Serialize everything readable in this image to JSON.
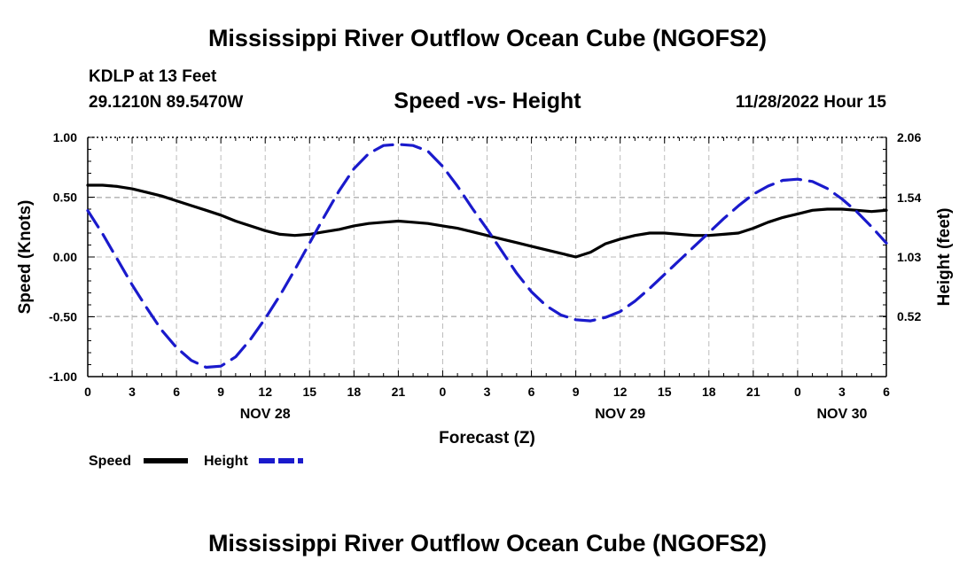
{
  "page": {
    "title": "Mississippi River Outflow Ocean Cube (NGOFS2)",
    "station_name": "KDLP at 13 Feet",
    "station_coords": "29.1210N  89.5470W",
    "plot_title": "Speed -vs- Height",
    "datetime": "11/28/2022 Hour 15",
    "footer_title": "Mississippi River Outflow Ocean Cube (NGOFS2)"
  },
  "colors": {
    "speed": "#000000",
    "height": "#1a1acc",
    "grid": "#bbbbbb"
  },
  "chart_data": {
    "type": "line",
    "xlabel": "Forecast (Z)",
    "ylabel": "Speed (Knots)",
    "y2label": "Height (feet)",
    "xlim": [
      0,
      54
    ],
    "ylim": [
      -1.0,
      1.0
    ],
    "y2lim": [
      0.0,
      2.06
    ],
    "x_tick_labels": [
      "0",
      "3",
      "6",
      "9",
      "12",
      "15",
      "18",
      "21",
      "0",
      "3",
      "6",
      "9",
      "12",
      "15",
      "18",
      "21",
      "0",
      "3",
      "6"
    ],
    "y_tick_labels": [
      "1.00",
      "0.50",
      "0.00",
      "-0.50",
      "-1.00"
    ],
    "y_tick_values": [
      1.0,
      0.5,
      0.0,
      -0.5,
      -1.0
    ],
    "y2_tick_labels": [
      "2.06",
      "1.54",
      "1.03",
      "0.52"
    ],
    "y2_tick_values": [
      2.06,
      1.54,
      1.03,
      0.52
    ],
    "date_labels": [
      {
        "label": "NOV 28",
        "x": 12
      },
      {
        "label": "NOV 29",
        "x": 36
      },
      {
        "label": "NOV 30",
        "x": 51
      }
    ],
    "legend": [
      {
        "name": "Speed",
        "style": "solid"
      },
      {
        "name": "Height",
        "style": "dashed"
      }
    ],
    "series": [
      {
        "name": "Speed",
        "axis": "left",
        "x": [
          0,
          1,
          2,
          3,
          4,
          5,
          6,
          7,
          8,
          9,
          10,
          11,
          12,
          13,
          14,
          15,
          16,
          17,
          18,
          19,
          20,
          21,
          22,
          23,
          24,
          25,
          26,
          27,
          28,
          29,
          30,
          31,
          32,
          33,
          34,
          35,
          36,
          37,
          38,
          39,
          40,
          41,
          42,
          43,
          44,
          45,
          46,
          47,
          48,
          49,
          50,
          51,
          52,
          53,
          54
        ],
        "values": [
          0.6,
          0.6,
          0.59,
          0.57,
          0.54,
          0.51,
          0.47,
          0.43,
          0.39,
          0.35,
          0.3,
          0.26,
          0.22,
          0.19,
          0.18,
          0.19,
          0.21,
          0.23,
          0.26,
          0.28,
          0.29,
          0.3,
          0.29,
          0.28,
          0.26,
          0.24,
          0.21,
          0.18,
          0.15,
          0.12,
          0.09,
          0.06,
          0.03,
          0.0,
          0.04,
          0.11,
          0.15,
          0.18,
          0.2,
          0.2,
          0.19,
          0.18,
          0.18,
          0.19,
          0.2,
          0.24,
          0.29,
          0.33,
          0.36,
          0.39,
          0.4,
          0.4,
          0.39,
          0.38,
          0.39
        ]
      },
      {
        "name": "Height",
        "axis": "right",
        "x": [
          0,
          1,
          2,
          3,
          4,
          5,
          6,
          7,
          8,
          9,
          10,
          11,
          12,
          13,
          14,
          15,
          16,
          17,
          18,
          19,
          20,
          21,
          22,
          23,
          24,
          25,
          26,
          27,
          28,
          29,
          30,
          31,
          32,
          33,
          34,
          35,
          36,
          37,
          38,
          39,
          40,
          41,
          42,
          43,
          44,
          45,
          46,
          47,
          48,
          49,
          50,
          51,
          52,
          53,
          54
        ],
        "values": [
          1.43,
          1.23,
          1.01,
          0.79,
          0.59,
          0.4,
          0.25,
          0.14,
          0.08,
          0.09,
          0.17,
          0.32,
          0.5,
          0.7,
          0.92,
          1.15,
          1.38,
          1.6,
          1.79,
          1.92,
          1.99,
          2.0,
          1.99,
          1.94,
          1.81,
          1.64,
          1.45,
          1.27,
          1.08,
          0.89,
          0.73,
          0.61,
          0.53,
          0.49,
          0.48,
          0.51,
          0.56,
          0.65,
          0.76,
          0.88,
          1.0,
          1.12,
          1.24,
          1.36,
          1.47,
          1.57,
          1.64,
          1.69,
          1.7,
          1.68,
          1.62,
          1.53,
          1.42,
          1.29,
          1.15
        ]
      }
    ]
  }
}
